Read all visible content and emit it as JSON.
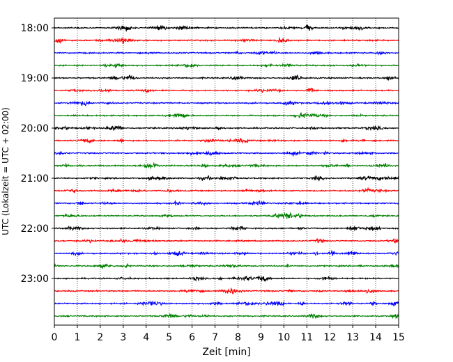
{
  "chart_data": {
    "type": "line",
    "title": "",
    "xlabel": "Zeit  [min]",
    "ylabel": "UTC (Lokalzeit = UTC + 02:00)",
    "xlim": [
      0,
      15
    ],
    "x_ticks": [
      "0",
      "1",
      "2",
      "3",
      "4",
      "5",
      "6",
      "7",
      "8",
      "9",
      "10",
      "11",
      "12",
      "13",
      "14",
      "15"
    ],
    "y_ticks": [
      "18:00",
      "19:00",
      "20:00",
      "21:00",
      "22:00",
      "23:00"
    ],
    "grid": "vertical dotted lines at each minute",
    "row_interval_minutes": 15,
    "trace_colors": [
      "#000000",
      "#ff0000",
      "#0000ff",
      "#008000"
    ],
    "series": [
      {
        "start": "18:00",
        "color": "#000000"
      },
      {
        "start": "18:15",
        "color": "#ff0000"
      },
      {
        "start": "18:30",
        "color": "#0000ff"
      },
      {
        "start": "18:45",
        "color": "#008000"
      },
      {
        "start": "19:00",
        "color": "#000000"
      },
      {
        "start": "19:15",
        "color": "#ff0000"
      },
      {
        "start": "19:30",
        "color": "#0000ff"
      },
      {
        "start": "19:45",
        "color": "#008000"
      },
      {
        "start": "20:00",
        "color": "#000000"
      },
      {
        "start": "20:15",
        "color": "#ff0000"
      },
      {
        "start": "20:30",
        "color": "#0000ff"
      },
      {
        "start": "20:45",
        "color": "#008000"
      },
      {
        "start": "21:00",
        "color": "#000000"
      },
      {
        "start": "21:15",
        "color": "#ff0000"
      },
      {
        "start": "21:30",
        "color": "#0000ff"
      },
      {
        "start": "21:45",
        "color": "#008000"
      },
      {
        "start": "22:00",
        "color": "#000000"
      },
      {
        "start": "22:15",
        "color": "#ff0000"
      },
      {
        "start": "22:30",
        "color": "#0000ff"
      },
      {
        "start": "22:45",
        "color": "#008000"
      },
      {
        "start": "23:00",
        "color": "#000000"
      },
      {
        "start": "23:15",
        "color": "#ff0000"
      },
      {
        "start": "23:30",
        "color": "#0000ff"
      },
      {
        "start": "23:45",
        "color": "#008000"
      }
    ]
  }
}
